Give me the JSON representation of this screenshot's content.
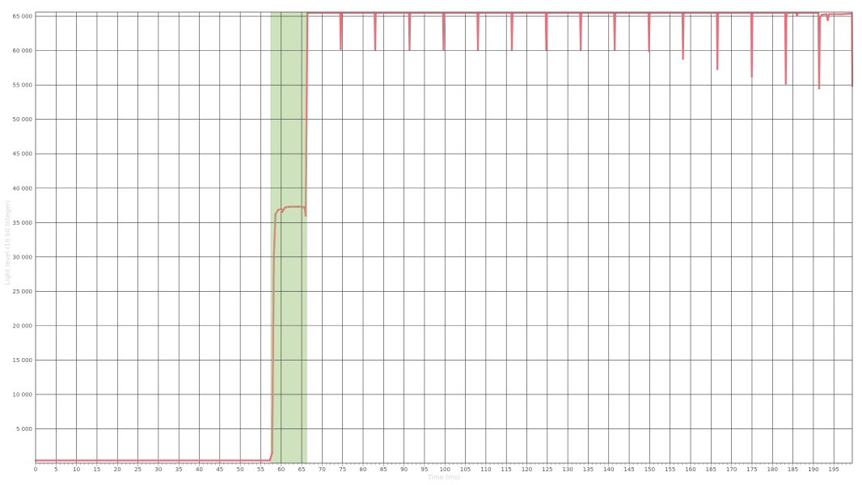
{
  "chart_data": {
    "type": "line",
    "title": "",
    "xlabel": "Time (ms)",
    "ylabel": "Light level (16 bit integer)",
    "xlim": [
      0,
      199.5
    ],
    "ylim": [
      0,
      65600
    ],
    "grid": true,
    "x_ticks": [
      0,
      5,
      10,
      15,
      20,
      25,
      30,
      35,
      40,
      45,
      50,
      55,
      60,
      65,
      70,
      75,
      80,
      85,
      90,
      95,
      100,
      105,
      110,
      115,
      120,
      125,
      130,
      135,
      140,
      145,
      150,
      155,
      160,
      165,
      170,
      175,
      180,
      185,
      190,
      195
    ],
    "x_tick_labels": [
      "0",
      "5",
      "10",
      "15",
      "20",
      "25",
      "30",
      "35",
      "40",
      "45",
      "50",
      "55",
      "60",
      "65",
      "70",
      "75",
      "80",
      "85",
      "90",
      "95",
      "100",
      "105",
      "110",
      "115",
      "120",
      "125",
      "130",
      "135",
      "140",
      "145",
      "150",
      "155",
      "160",
      "165",
      "170",
      "175",
      "180",
      "185",
      "190",
      "195"
    ],
    "y_ticks": [
      5000,
      10000,
      15000,
      20000,
      25000,
      30000,
      35000,
      40000,
      45000,
      50000,
      55000,
      60000,
      65000
    ],
    "y_tick_labels": [
      "5 000",
      "10 000",
      "15 000",
      "20 000",
      "25 000",
      "30 000",
      "35 000",
      "40 000",
      "45 000",
      "50 000",
      "55 000",
      "60 000",
      "65 000"
    ],
    "highlight": {
      "x_start": 57.5,
      "x_end": 66.2,
      "color": "#cfe2be",
      "border_color": "#b6d09e"
    },
    "series": [
      {
        "color": "#e8707a",
        "dip_color": "#d9606a",
        "shoulder_color": "#c9957a",
        "x": [
          0,
          57.2,
          57.8,
          58.2,
          58.6,
          59.2,
          60,
          60.3,
          60.6,
          61,
          62,
          64,
          65,
          65.7,
          66,
          66.2,
          66.4,
          66.8,
          74.4,
          74.55,
          74.7,
          74.9,
          82.8,
          82.95,
          83.1,
          83.3,
          91.2,
          91.35,
          91.5,
          91.7,
          99.5,
          99.65,
          99.8,
          100,
          107.9,
          108.05,
          108.2,
          108.4,
          116.2,
          116.35,
          116.5,
          116.7,
          124.6,
          124.75,
          124.9,
          125.1,
          133,
          133.15,
          133.3,
          133.5,
          141.3,
          141.45,
          141.6,
          141.8,
          149.7,
          149.85,
          150,
          150.2,
          158,
          158.15,
          158.3,
          158.5,
          166.4,
          166.55,
          166.7,
          166.9,
          174.8,
          174.95,
          175.1,
          175.3,
          183.1,
          183.25,
          183.4,
          183.6,
          185.8,
          186,
          186.2,
          191.2,
          191.4,
          191.6,
          192,
          193.2,
          193.5,
          193.8,
          197,
          199.4,
          199.5
        ],
        "y": [
          400,
          400,
          1500,
          30000,
          36200,
          36800,
          37000,
          36600,
          36900,
          37200,
          37300,
          37300,
          37300,
          37200,
          36000,
          50000,
          65500,
          65500,
          65500,
          60200,
          65400,
          65500,
          65500,
          60100,
          65400,
          65500,
          65500,
          60100,
          65400,
          65500,
          65500,
          60100,
          65400,
          65500,
          65500,
          60100,
          65400,
          65500,
          65500,
          60100,
          65400,
          65500,
          65500,
          60100,
          65400,
          65500,
          65500,
          60100,
          65400,
          65500,
          65500,
          60100,
          65400,
          65500,
          65500,
          59900,
          65400,
          65500,
          65500,
          58800,
          65400,
          65500,
          65500,
          57300,
          65400,
          65500,
          65500,
          56200,
          65400,
          65500,
          65500,
          55200,
          64900,
          65500,
          65500,
          65100,
          65500,
          65500,
          54500,
          64800,
          65200,
          65300,
          64400,
          65300,
          65300,
          65400,
          54800
        ]
      }
    ]
  }
}
